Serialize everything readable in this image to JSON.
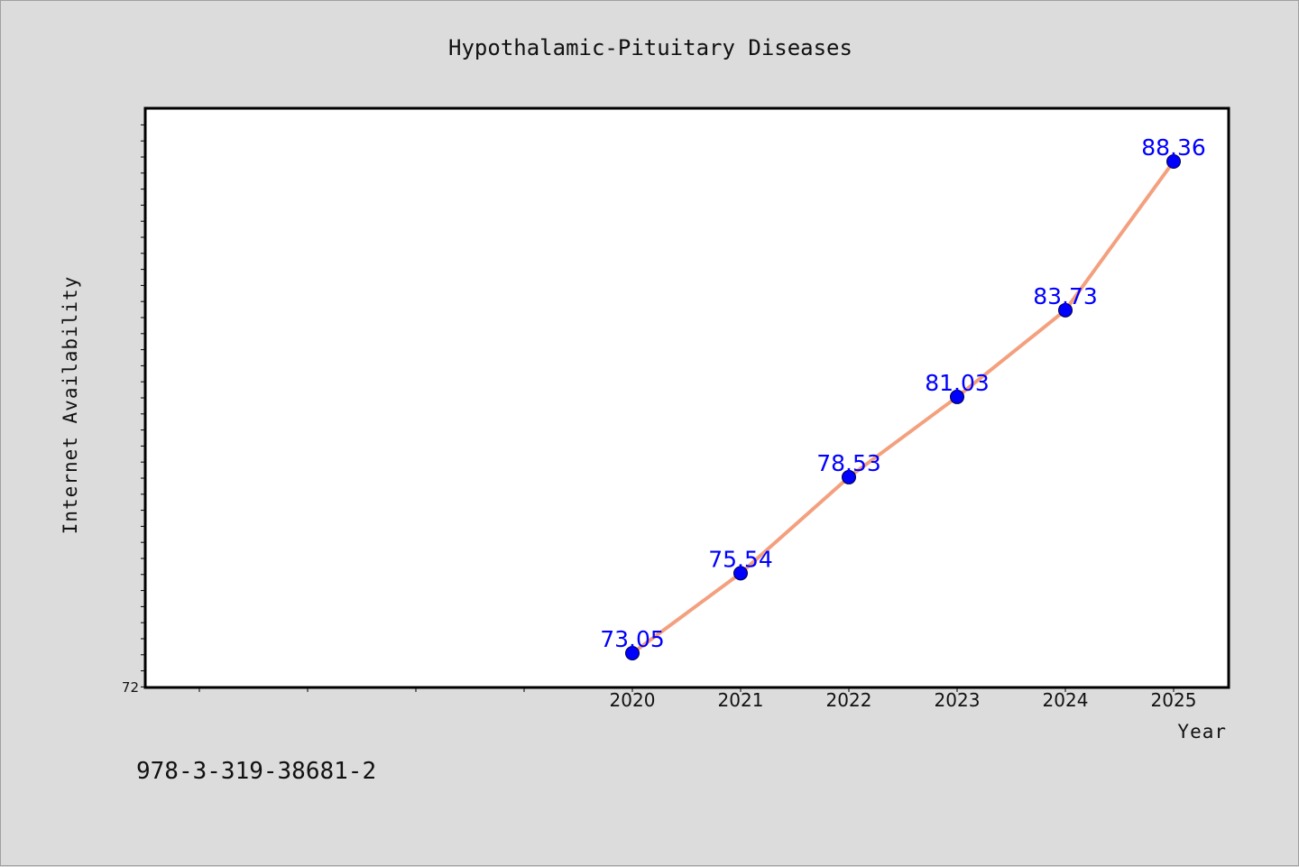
{
  "chart_data": {
    "type": "line",
    "title": "Hypothalamic-Pituitary Diseases",
    "xlabel": "Year",
    "ylabel": "Internet Availability",
    "x": [
      2020,
      2021,
      2022,
      2023,
      2024,
      2025
    ],
    "series": [
      {
        "values": [
          73.05,
          75.54,
          78.53,
          81.03,
          83.73,
          88.36
        ],
        "data_labels": [
          "73.05",
          "75.54",
          "78.53",
          "81.03",
          "83.73",
          "88.36"
        ],
        "line_color": "#f4a07e",
        "marker_color": "#0000ff"
      }
    ],
    "xlim": [
      2015.5,
      2030.5
    ],
    "ylim": [
      72,
      90
    ],
    "yticks_labeled": [
      "72"
    ],
    "grid": false,
    "legend": "none"
  },
  "footer": {
    "isbn": "978-3-319-38681-2"
  },
  "colors": {
    "background": "#dcdcdc",
    "plot_area": "#ffffff",
    "line": "#f4a07e",
    "marker": "#0000ff",
    "label": "#0000ff"
  }
}
